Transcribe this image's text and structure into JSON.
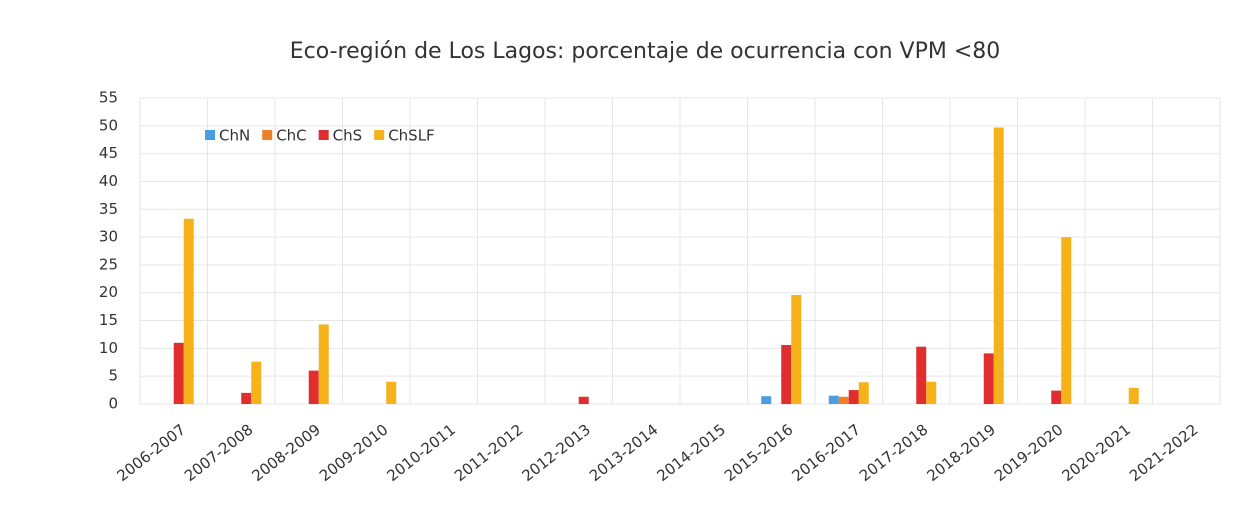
{
  "chart_data": {
    "type": "bar",
    "title": "Eco-región de Los Lagos: porcentaje de ocurrencia con VPM <80",
    "categories": [
      "2006-2007",
      "2007-2008",
      "2008-2009",
      "2009-2010",
      "2010-2011",
      "2011-2012",
      "2012-2013",
      "2013-2014",
      "2014-2015",
      "2015-2016",
      "2016-2017",
      "2017-2018",
      "2018-2019",
      "2019-2020",
      "2020-2021",
      "2021-2022"
    ],
    "series": [
      {
        "name": "ChN",
        "color": "#4a9de0",
        "values": [
          0,
          0,
          0,
          0,
          0,
          0,
          0,
          0,
          0,
          1.4,
          1.5,
          0,
          0,
          0,
          0,
          0
        ]
      },
      {
        "name": "ChC",
        "color": "#f07f2a",
        "values": [
          0,
          0,
          0,
          0,
          0,
          0,
          0,
          0,
          0,
          0,
          1.3,
          0,
          0,
          0,
          0,
          0
        ]
      },
      {
        "name": "ChS",
        "color": "#e02e2e",
        "values": [
          11,
          2,
          6,
          0,
          0,
          0,
          1.3,
          0,
          0,
          10.6,
          2.5,
          10.3,
          9.1,
          2.4,
          0,
          0
        ]
      },
      {
        "name": "ChSLF",
        "color": "#f5b21b",
        "values": [
          33.3,
          7.6,
          14.3,
          4,
          0,
          0,
          0,
          0,
          0,
          19.6,
          3.9,
          4,
          49.7,
          30,
          2.9,
          0
        ]
      }
    ],
    "ylim": [
      0,
      55
    ],
    "yticks": [
      0,
      5,
      10,
      15,
      20,
      25,
      30,
      35,
      40,
      45,
      50,
      55
    ],
    "grid": true,
    "legend": "top-left"
  }
}
